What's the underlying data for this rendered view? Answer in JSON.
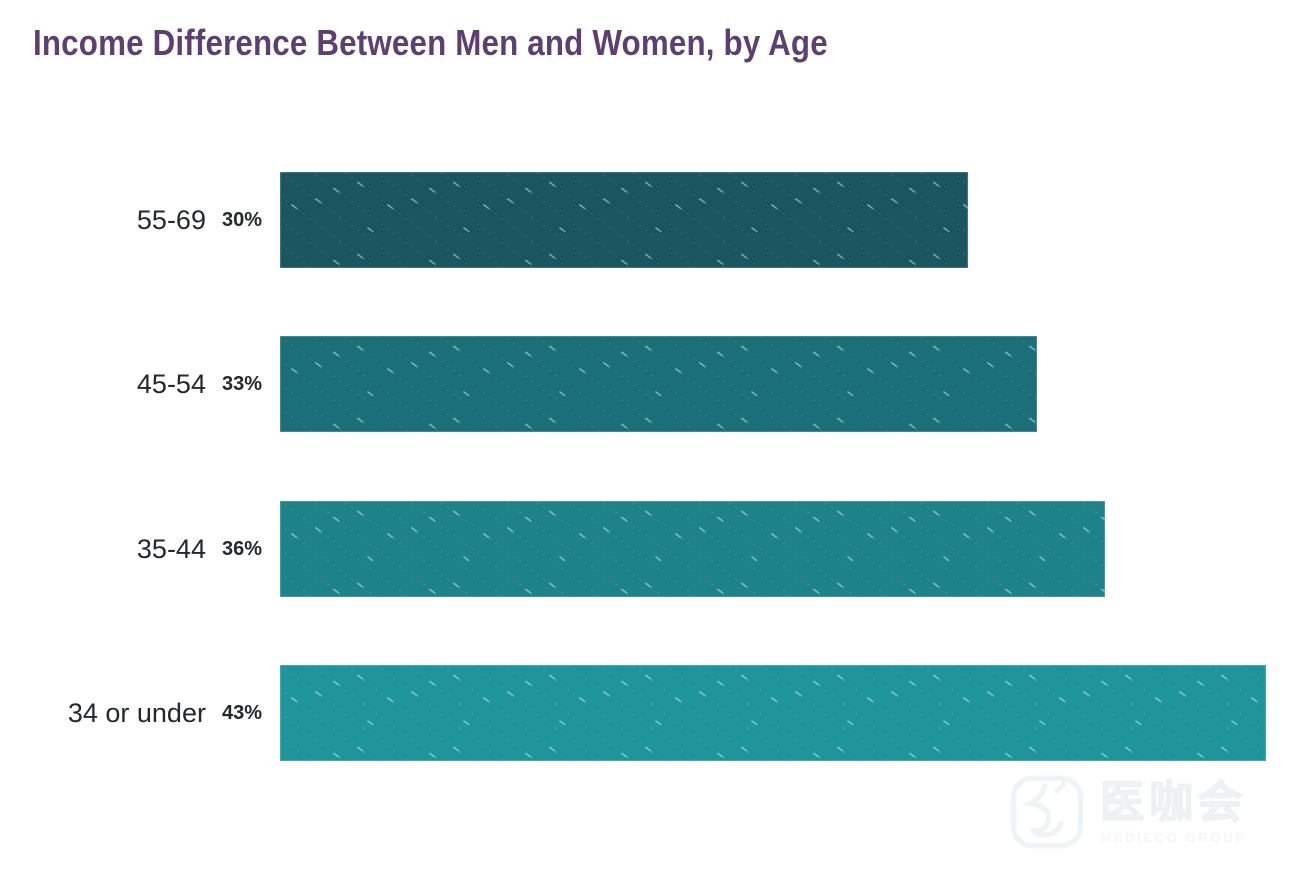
{
  "title": {
    "text": "Income Difference Between Men and Women, by Age",
    "color": "#5e3f72"
  },
  "chart_data": {
    "type": "bar",
    "orientation": "horizontal",
    "title": "Income Difference Between Men and Women, by Age",
    "categories": [
      "55-69",
      "45-54",
      "35-44",
      "34 or under"
    ],
    "values": [
      30,
      33,
      36,
      43
    ],
    "value_labels": [
      "30%",
      "33%",
      "36%",
      "43%"
    ],
    "bar_colors": [
      "#1a5560",
      "#1a6f78",
      "#1d828a",
      "#20949b"
    ],
    "bar_texture": "diagonal-dotted-lines",
    "xlabel": "",
    "ylabel": "",
    "xlim": [
      0,
      43
    ],
    "grid": false,
    "legend": null,
    "label_color": "#26292c",
    "title_color": "#5e3f72"
  },
  "watermark": {
    "icon": "mediecogroup-logo-icon",
    "cjk_text": "医咖会",
    "latin_text": "MEDIECO GROUP",
    "color": "#edf0f3"
  }
}
